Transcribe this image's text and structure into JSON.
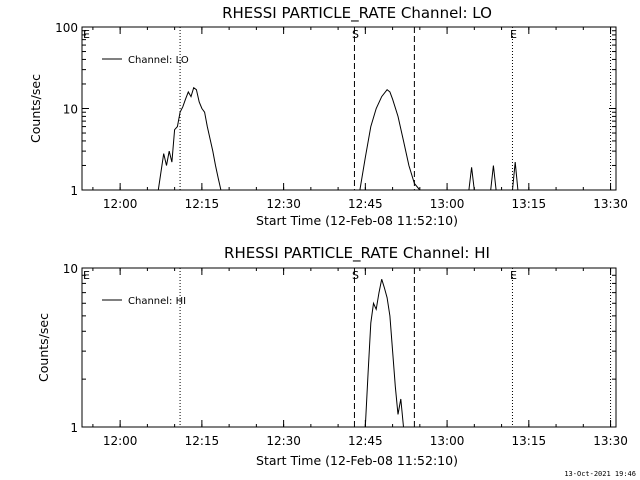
{
  "timestamp": "13-Oct-2021 19:46",
  "chart_data": [
    {
      "type": "line",
      "title": "RHESSI PARTICLE_RATE Channel: LO",
      "xlabel": "Start Time (12-Feb-08 11:52:10)",
      "ylabel": "Counts/sec",
      "yscale": "log",
      "xlim": [
        "11:53",
        "13:31"
      ],
      "ylim": [
        1,
        100
      ],
      "x_ticks": [
        "12:00",
        "12:15",
        "12:30",
        "12:45",
        "13:00",
        "13:15",
        "13:30"
      ],
      "y_ticks": [
        "1",
        "10",
        "100"
      ],
      "legend": "top-left",
      "series": [
        {
          "name": "Channel: LO",
          "x": [
            "12:07",
            "12:08",
            "12:08:30",
            "12:09",
            "12:09:30",
            "12:10",
            "12:10:30",
            "12:11",
            "12:11:30",
            "12:12",
            "12:12:30",
            "12:13",
            "12:13:30",
            "12:14",
            "12:14:30",
            "12:15",
            "12:15:30",
            "12:16",
            "12:17",
            "12:17:30",
            "12:18",
            "12:18:30",
            "12:44",
            "12:45",
            "12:46",
            "12:47",
            "12:48",
            "12:49",
            "12:49:30",
            "12:50",
            "12:51",
            "12:52",
            "12:53",
            "12:54",
            "12:55",
            "13:04",
            "13:04:30",
            "13:05",
            "13:05:30",
            "13:08",
            "13:08:30",
            "13:09",
            "13:09:30",
            "13:12",
            "13:12:30",
            "13:13",
            "13:13:30"
          ],
          "values": [
            1,
            2.8,
            2,
            3,
            2.2,
            5.5,
            6,
            9,
            10.5,
            13,
            16,
            14,
            18,
            17,
            12,
            10,
            9,
            6,
            3,
            2,
            1.4,
            1,
            1,
            2.5,
            6,
            10,
            14,
            17,
            16,
            13,
            8,
            4,
            2,
            1.2,
            1,
            1,
            1.9,
            1,
            1,
            1,
            2,
            1,
            1,
            1,
            2.2,
            1,
            1
          ]
        }
      ],
      "markers": [
        {
          "label": "E",
          "x": "11:53",
          "style": "none"
        },
        {
          "label": "",
          "x": "12:11",
          "style": "dotted"
        },
        {
          "label": "S",
          "x": "12:43",
          "style": "dashed"
        },
        {
          "label": "",
          "x": "12:54",
          "style": "dashed"
        },
        {
          "label": "E",
          "x": "13:12",
          "style": "dotted"
        },
        {
          "label": "",
          "x": "13:30",
          "style": "dotted"
        }
      ]
    },
    {
      "type": "line",
      "title": "RHESSI PARTICLE_RATE Channel: HI",
      "xlabel": "Start Time (12-Feb-08 11:52:10)",
      "ylabel": "Counts/sec",
      "yscale": "log",
      "xlim": [
        "11:53",
        "13:31"
      ],
      "ylim": [
        1,
        10
      ],
      "x_ticks": [
        "12:00",
        "12:15",
        "12:30",
        "12:45",
        "13:00",
        "13:15",
        "13:30"
      ],
      "y_ticks": [
        "1",
        "10"
      ],
      "legend": "top-left",
      "series": [
        {
          "name": "Channel: HI",
          "x": [
            "12:45",
            "12:45:30",
            "12:46",
            "12:46:30",
            "12:47",
            "12:47:30",
            "12:48",
            "12:48:30",
            "12:49",
            "12:49:30",
            "12:50",
            "12:50:30",
            "12:51",
            "12:51:30",
            "12:52"
          ],
          "values": [
            1,
            2.2,
            4.5,
            6,
            5.5,
            7,
            8.5,
            7.5,
            6.5,
            5,
            3,
            1.8,
            1.2,
            1.5,
            1
          ]
        }
      ],
      "markers": [
        {
          "label": "E",
          "x": "11:53",
          "style": "none"
        },
        {
          "label": "",
          "x": "12:11",
          "style": "dotted"
        },
        {
          "label": "S",
          "x": "12:43",
          "style": "dashed"
        },
        {
          "label": "",
          "x": "12:54",
          "style": "dashed"
        },
        {
          "label": "E",
          "x": "13:12",
          "style": "dotted"
        },
        {
          "label": "",
          "x": "13:30",
          "style": "dotted"
        }
      ]
    }
  ]
}
